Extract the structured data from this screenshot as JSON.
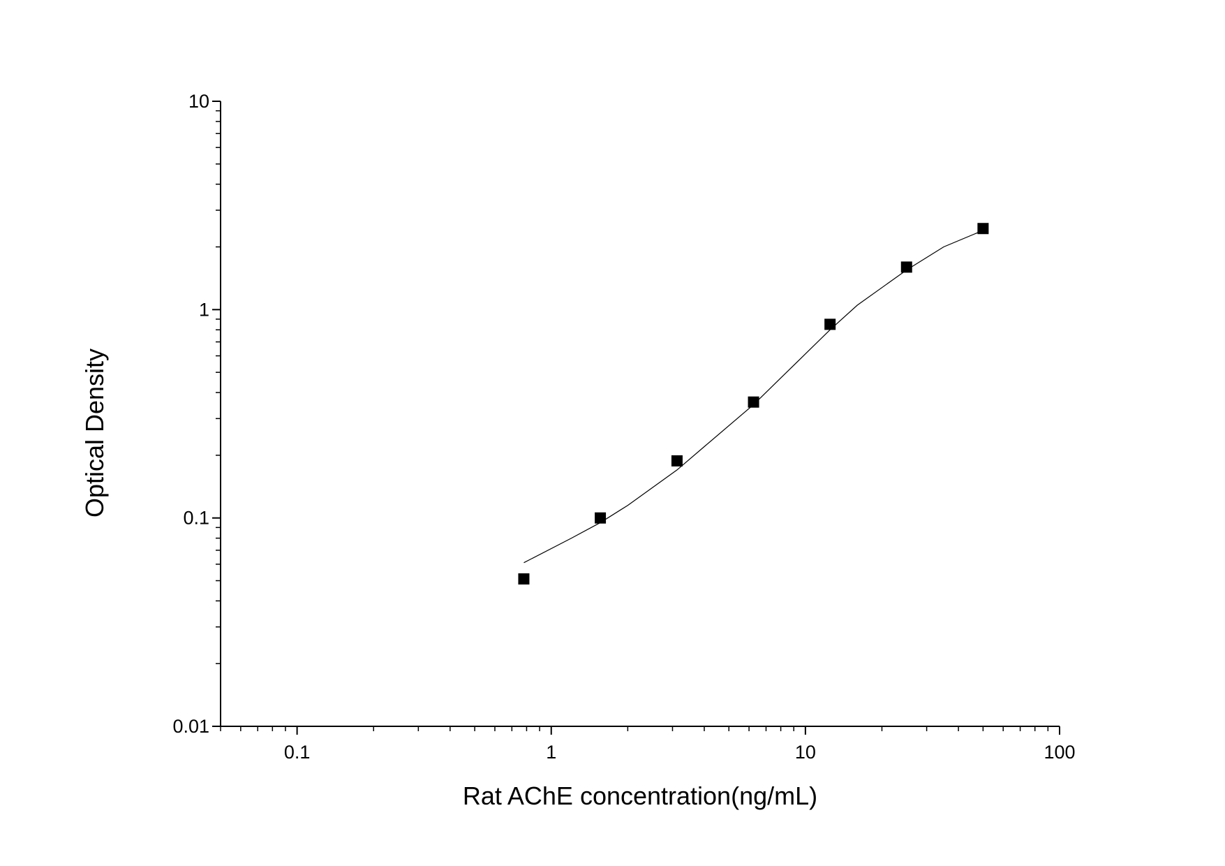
{
  "chart_data": {
    "type": "scatter",
    "xlabel": "Rat AChE concentration(ng/mL)",
    "ylabel": "Optical Density",
    "xscale": "log",
    "yscale": "log",
    "xlim": [
      0.05,
      100
    ],
    "ylim": [
      0.01,
      10
    ],
    "xticks": [
      0.1,
      1,
      10,
      100
    ],
    "yticks": [
      0.01,
      0.1,
      1,
      10
    ],
    "xminorticks": [
      0.05,
      0.06,
      0.07,
      0.08,
      0.09,
      0.2,
      0.3,
      0.4,
      0.5,
      0.6,
      0.7,
      0.8,
      0.9,
      2,
      3,
      4,
      5,
      6,
      7,
      8,
      9,
      20,
      30,
      40,
      50,
      60,
      70,
      80,
      90
    ],
    "yminorticks": [
      0.02,
      0.03,
      0.04,
      0.05,
      0.06,
      0.07,
      0.08,
      0.09,
      0.2,
      0.3,
      0.4,
      0.5,
      0.6,
      0.7,
      0.8,
      0.9,
      2,
      3,
      4,
      5,
      6,
      7,
      8,
      9
    ],
    "series": [
      {
        "type": "scatter",
        "color": "#000000",
        "x": [
          0.78,
          1.56,
          3.125,
          6.25,
          12.5,
          25,
          50
        ],
        "values": [
          0.051,
          0.1,
          0.188,
          0.36,
          0.85,
          1.6,
          2.45
        ]
      },
      {
        "type": "line",
        "color": "#000000",
        "x": [
          0.78,
          1.2,
          1.56,
          2,
          3.125,
          4,
          6.25,
          8,
          12.5,
          16,
          25,
          35,
          50
        ],
        "values": [
          0.061,
          0.08,
          0.095,
          0.115,
          0.17,
          0.22,
          0.35,
          0.47,
          0.8,
          1.05,
          1.55,
          2.0,
          2.4
        ]
      }
    ]
  }
}
